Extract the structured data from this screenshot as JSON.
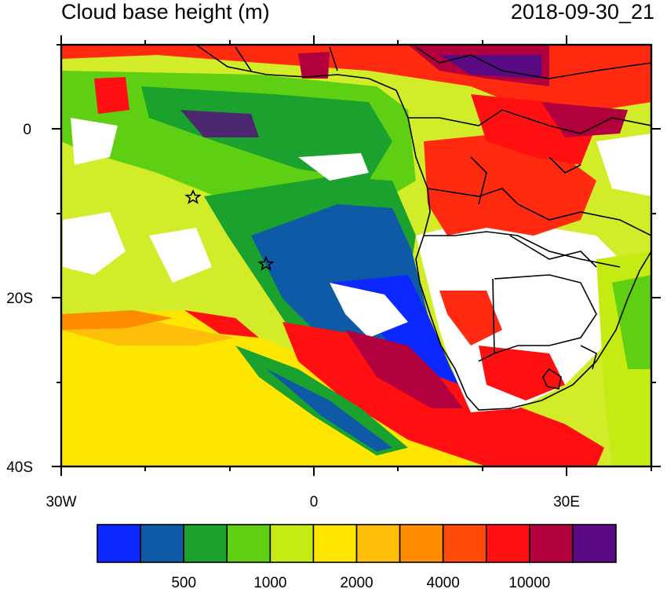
{
  "header": {
    "title": "Cloud base height (m)",
    "timestamp": "2018-09-30_21"
  },
  "map": {
    "x_tick_labels": [
      "30W",
      "0",
      "30E"
    ],
    "y_tick_labels": [
      "0",
      "20S",
      "40S"
    ],
    "markers": [
      {
        "label": "star",
        "lon": -14.5,
        "lat": -8
      },
      {
        "label": "star",
        "lon": -5.5,
        "lat": -16
      }
    ]
  },
  "colorbar": {
    "colors": [
      "#0a28ff",
      "#0e5aa7",
      "#1aa12e",
      "#5ecf13",
      "#c4ec13",
      "#ffe600",
      "#ffbe0a",
      "#ff8c00",
      "#ff4a0a",
      "#ff0f0f",
      "#b2003f",
      "#5a0a82"
    ],
    "labels": [
      "500",
      "1000",
      "2000",
      "4000",
      "10000"
    ]
  }
}
